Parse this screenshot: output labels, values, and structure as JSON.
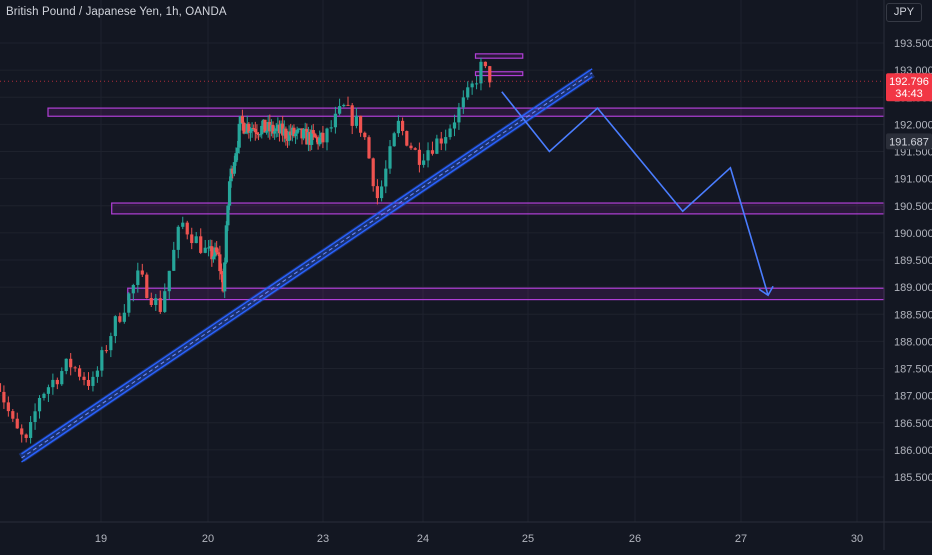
{
  "title": "British Pound / Japanese Yen, 1h, OANDA",
  "currency_button": "JPY",
  "colors": {
    "background": "#131722",
    "up_candle": "#26a69a",
    "down_candle": "#ef5350",
    "zone": "#b03fd6",
    "zone_fill": "rgba(156,39,176,0.16)",
    "trendline": "#2962ff",
    "projection": "#4a7dff",
    "last_price_tag": "#f23645",
    "ref_price_tag": "#2a2e39",
    "axis_text": "#b2b5be"
  },
  "chart_data": {
    "type": "candlestick",
    "symbol": "GBPJPY",
    "timeframe": "1h",
    "y_axis": {
      "ticks": [
        "193.500",
        "193.000",
        "192.500",
        "192.000",
        "191.500",
        "191.000",
        "190.500",
        "190.000",
        "189.500",
        "189.000",
        "188.500",
        "188.000",
        "187.500",
        "187.000",
        "186.500",
        "186.000",
        "185.500"
      ],
      "range": [
        185.35,
        193.72
      ]
    },
    "x_axis": {
      "ticks": [
        {
          "label": "19",
          "day": 19
        },
        {
          "label": "20",
          "day": 20
        },
        {
          "label": "23",
          "day": 23
        },
        {
          "label": "24",
          "day": 24
        },
        {
          "label": "25",
          "day": 25
        },
        {
          "label": "26",
          "day": 26
        },
        {
          "label": "27",
          "day": 27
        },
        {
          "label": "30",
          "day": 30
        }
      ]
    },
    "price_tags": {
      "last_price": "192.796",
      "countdown": "34:43",
      "reference_price": "191.687"
    },
    "anchors": [
      {
        "day": 18.0,
        "price": 187.4
      },
      {
        "day": 18.18,
        "price": 186.4
      },
      {
        "day": 18.3,
        "price": 186.1
      },
      {
        "day": 18.42,
        "price": 187.0
      },
      {
        "day": 18.7,
        "price": 187.6
      },
      {
        "day": 18.92,
        "price": 187.2
      },
      {
        "day": 19.1,
        "price": 188.2
      },
      {
        "day": 19.35,
        "price": 189.2
      },
      {
        "day": 19.55,
        "price": 188.6
      },
      {
        "day": 19.75,
        "price": 190.2
      },
      {
        "day": 20.0,
        "price": 189.6
      },
      {
        "day": 20.25,
        "price": 189.6
      },
      {
        "day": 20.4,
        "price": 189.0
      },
      {
        "day": 20.55,
        "price": 190.9
      },
      {
        "day": 20.85,
        "price": 192.0
      },
      {
        "day": 23.0,
        "price": 191.7
      },
      {
        "day": 23.2,
        "price": 192.3
      },
      {
        "day": 23.4,
        "price": 191.9
      },
      {
        "day": 23.55,
        "price": 190.6
      },
      {
        "day": 23.75,
        "price": 192.0
      },
      {
        "day": 23.95,
        "price": 191.4
      },
      {
        "day": 24.2,
        "price": 191.8
      },
      {
        "day": 24.45,
        "price": 192.6
      },
      {
        "day": 24.55,
        "price": 193.05
      },
      {
        "day": 24.65,
        "price": 192.85
      }
    ],
    "zones": [
      {
        "from_day": 18.5,
        "to_day": 31.5,
        "low": 192.15,
        "high": 192.3
      },
      {
        "from_day": 19.1,
        "to_day": 31.5,
        "low": 190.35,
        "high": 190.55
      },
      {
        "from_day": 19.25,
        "to_day": 31.5,
        "low": 188.77,
        "high": 188.98
      },
      {
        "from_day": 24.5,
        "to_day": 24.95,
        "low": 193.22,
        "high": 193.3
      },
      {
        "from_day": 24.5,
        "to_day": 24.95,
        "low": 192.9,
        "high": 192.97
      }
    ],
    "trendline": {
      "from": {
        "day": 18.25,
        "price": 185.85
      },
      "to": {
        "day": 25.6,
        "price": 192.95
      }
    },
    "projection_path": [
      {
        "day": 24.75,
        "price": 192.6
      },
      {
        "day": 25.2,
        "price": 191.5
      },
      {
        "day": 25.65,
        "price": 192.3
      },
      {
        "day": 26.45,
        "price": 190.4
      },
      {
        "day": 26.9,
        "price": 191.2
      },
      {
        "day": 27.7,
        "price": 188.85
      }
    ]
  }
}
